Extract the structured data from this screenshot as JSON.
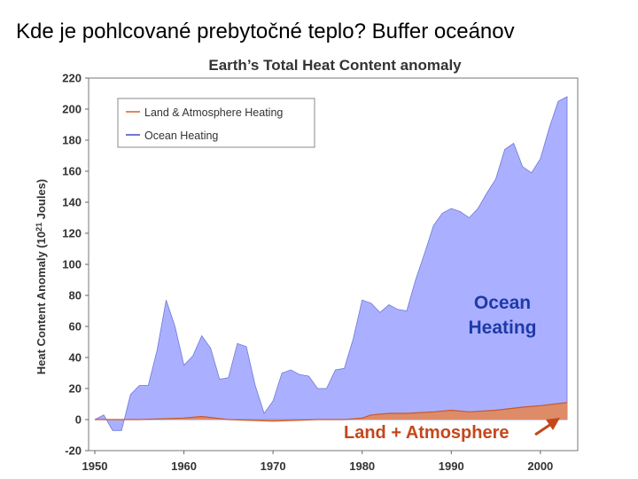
{
  "slide": {
    "title": "Kde je pohlcované prebytočné teplo?  Buffer oceánov"
  },
  "chart_data": {
    "type": "area",
    "title": "Earth’s Total Heat Content anomaly",
    "xlabel": "",
    "ylabel_main": "Heat Content Anomaly (10",
    "ylabel_sup": "21",
    "ylabel_tail": " Joules)",
    "xlim": [
      1950,
      2003
    ],
    "ylim": [
      -20,
      220
    ],
    "xticks": [
      1950,
      1960,
      1970,
      1980,
      1990,
      2000
    ],
    "yticks": [
      -20,
      0,
      20,
      40,
      60,
      80,
      100,
      120,
      140,
      160,
      180,
      200,
      220
    ],
    "legend_position": "top-left",
    "legend": [
      {
        "label": "Land & Atmosphere Heating",
        "color": "#e08a60"
      },
      {
        "label": "Ocean Heating",
        "color": "#9da4ff"
      }
    ],
    "annotations": {
      "ocean_line1": "Ocean",
      "ocean_line2": "Heating",
      "land": "Land + Atmosphere"
    },
    "series": [
      {
        "name": "Ocean Heating",
        "color": "#aab0ff",
        "x": [
          1950,
          1951,
          1952,
          1953,
          1954,
          1955,
          1956,
          1957,
          1958,
          1959,
          1960,
          1961,
          1962,
          1963,
          1964,
          1965,
          1966,
          1967,
          1968,
          1969,
          1970,
          1971,
          1972,
          1973,
          1974,
          1975,
          1976,
          1977,
          1978,
          1979,
          1980,
          1981,
          1982,
          1983,
          1984,
          1985,
          1986,
          1987,
          1988,
          1989,
          1990,
          1991,
          1992,
          1993,
          1994,
          1995,
          1996,
          1997,
          1998,
          1999,
          2000,
          2001,
          2002,
          2003
        ],
        "values": [
          0,
          3,
          -7,
          -7,
          16,
          22,
          22,
          45,
          77,
          60,
          35,
          41,
          54,
          46,
          26,
          27,
          49,
          47,
          22,
          4,
          12,
          30,
          32,
          29,
          28,
          20,
          20,
          32,
          33,
          52,
          77,
          75,
          69,
          74,
          71,
          70,
          90,
          107,
          125,
          133,
          136,
          134,
          130,
          136,
          146,
          155,
          174,
          178,
          163,
          159,
          168,
          188,
          205,
          208
        ]
      },
      {
        "name": "Land & Atmosphere Heating",
        "color": "#e08a60",
        "x": [
          1950,
          1955,
          1960,
          1962,
          1965,
          1970,
          1975,
          1978,
          1980,
          1981,
          1983,
          1985,
          1988,
          1990,
          1992,
          1995,
          1998,
          2000,
          2003
        ],
        "values": [
          0,
          0,
          1,
          2,
          0,
          -1,
          0,
          0,
          1,
          3,
          4,
          4,
          5,
          6,
          5,
          6,
          8,
          9,
          11
        ]
      }
    ]
  }
}
